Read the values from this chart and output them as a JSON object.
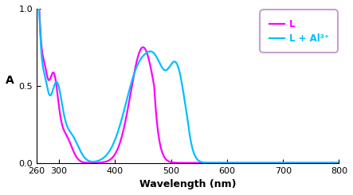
{
  "xlabel": "Wavelength (nm)",
  "ylabel": "A",
  "xlim": [
    260,
    800
  ],
  "ylim": [
    0,
    1.0
  ],
  "yticks": [
    0,
    0.5,
    1.0
  ],
  "xticks": [
    260,
    300,
    400,
    500,
    600,
    700,
    800
  ],
  "legend_labels": [
    "L",
    "L + Al³⁺"
  ],
  "line_L_color": "#FF00FF",
  "line_Al_color": "#00BFFF",
  "line_width": 1.6,
  "legend_box_color": "#C8A0D0",
  "legend_text_L_color": "#FF00FF",
  "legend_text_Al_color": "#00BFFF"
}
